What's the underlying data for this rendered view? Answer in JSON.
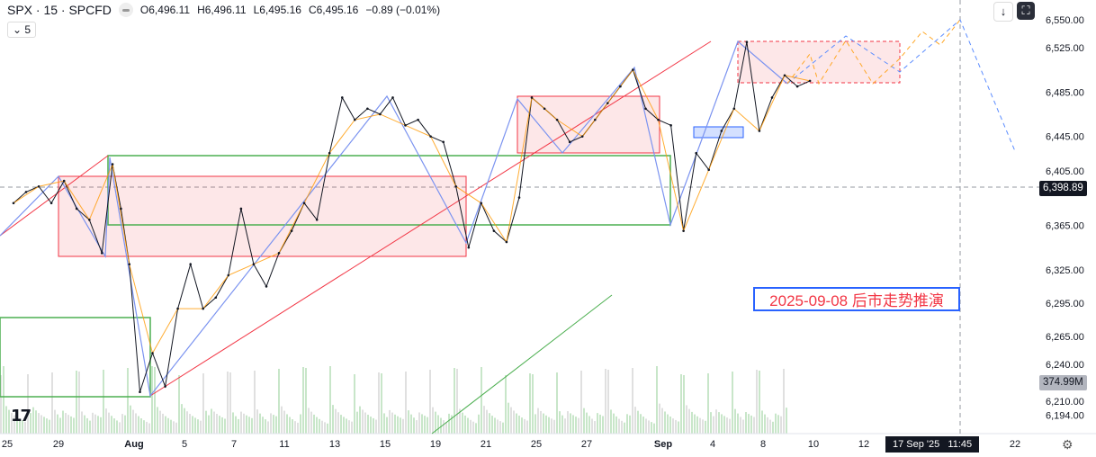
{
  "header": {
    "symbol": "SPX · 15 · SPCFD",
    "open": "O6,496.11",
    "high": "H6,496.11",
    "low": "L6,495.16",
    "close": "C6,495.16",
    "change": "−0.89 (−0.01%)",
    "indicator_count": "5"
  },
  "buttons": {
    "scroll_icon": "arrow-down-icon",
    "fullscreen_icon": "fullscreen-icon",
    "settings_icon": "gear-icon"
  },
  "annotation": "2025-09-08 后市走势推演",
  "crosshair": {
    "price": "6,398.89",
    "time": "17 Sep '25   11:45"
  },
  "volume_label": "374.99M",
  "chart_data": {
    "type": "line",
    "title": "SPX · 15 · SPCFD",
    "y_ticks": [
      "6,550.00",
      "6,525.00",
      "6,485.00",
      "6,445.00",
      "6,405.00",
      "6,365.00",
      "6,325.00",
      "6,295.00",
      "6,265.00",
      "6,240.00",
      "6,210.00",
      "6,194.00"
    ],
    "x_ticks": [
      "25",
      "29",
      "Aug",
      "5",
      "7",
      "11",
      "13",
      "15",
      "19",
      "21",
      "25",
      "27",
      "Sep",
      "4",
      "8",
      "10",
      "12",
      "22"
    ],
    "ylim": [
      6180,
      6560
    ],
    "series": [
      {
        "color": "#131722",
        "points": [
          [
            "2025-07-25",
            6385
          ],
          [
            "2025-07-25",
            6395
          ],
          [
            "2025-07-28",
            6400
          ],
          [
            "2025-07-28",
            6385
          ],
          [
            "2025-07-29",
            6405
          ],
          [
            "2025-07-29",
            6380
          ],
          [
            "2025-07-30",
            6370
          ],
          [
            "2025-07-30",
            6340
          ],
          [
            "2025-07-31",
            6420
          ],
          [
            "2025-07-31",
            6380
          ],
          [
            "2025-07-31",
            6330
          ],
          [
            "2025-08-01",
            6215
          ],
          [
            "2025-08-01",
            6250
          ],
          [
            "2025-08-04",
            6220
          ],
          [
            "2025-08-04",
            6290
          ],
          [
            "2025-08-05",
            6330
          ],
          [
            "2025-08-05",
            6290
          ],
          [
            "2025-08-06",
            6300
          ],
          [
            "2025-08-06",
            6320
          ],
          [
            "2025-08-07",
            6380
          ],
          [
            "2025-08-07",
            6330
          ],
          [
            "2025-08-08",
            6310
          ],
          [
            "2025-08-08",
            6340
          ],
          [
            "2025-08-11",
            6360
          ],
          [
            "2025-08-11",
            6385
          ],
          [
            "2025-08-12",
            6370
          ],
          [
            "2025-08-12",
            6430
          ],
          [
            "2025-08-13",
            6480
          ],
          [
            "2025-08-13",
            6460
          ],
          [
            "2025-08-14",
            6470
          ],
          [
            "2025-08-14",
            6465
          ],
          [
            "2025-08-15",
            6480
          ],
          [
            "2025-08-15",
            6455
          ],
          [
            "2025-08-18",
            6460
          ],
          [
            "2025-08-18",
            6445
          ],
          [
            "2025-08-19",
            6440
          ],
          [
            "2025-08-19",
            6400
          ],
          [
            "2025-08-20",
            6345
          ],
          [
            "2025-08-20",
            6385
          ],
          [
            "2025-08-21",
            6360
          ],
          [
            "2025-08-21",
            6350
          ],
          [
            "2025-08-22",
            6390
          ],
          [
            "2025-08-22",
            6480
          ],
          [
            "2025-08-25",
            6470
          ],
          [
            "2025-08-25",
            6460
          ],
          [
            "2025-08-26",
            6440
          ],
          [
            "2025-08-26",
            6445
          ],
          [
            "2025-08-27",
            6460
          ],
          [
            "2025-08-27",
            6475
          ],
          [
            "2025-08-28",
            6490
          ],
          [
            "2025-08-28",
            6505
          ],
          [
            "2025-08-29",
            6470
          ],
          [
            "2025-08-29",
            6460
          ],
          [
            "2025-09-02",
            6455
          ],
          [
            "2025-09-02",
            6360
          ],
          [
            "2025-09-03",
            6430
          ],
          [
            "2025-09-03",
            6415
          ],
          [
            "2025-09-04",
            6450
          ],
          [
            "2025-09-04",
            6470
          ],
          [
            "2025-09-05",
            6530
          ],
          [
            "2025-09-05",
            6450
          ],
          [
            "2025-09-08",
            6480
          ],
          [
            "2025-09-08",
            6500
          ],
          [
            "2025-09-09",
            6490
          ],
          [
            "2025-09-09",
            6495
          ]
        ]
      }
    ],
    "colors": {
      "zone": "#f23645",
      "box": "#4caf50",
      "blue": "#2962ff",
      "orange": "#ff9800",
      "volume": "#c8e6c9"
    }
  }
}
